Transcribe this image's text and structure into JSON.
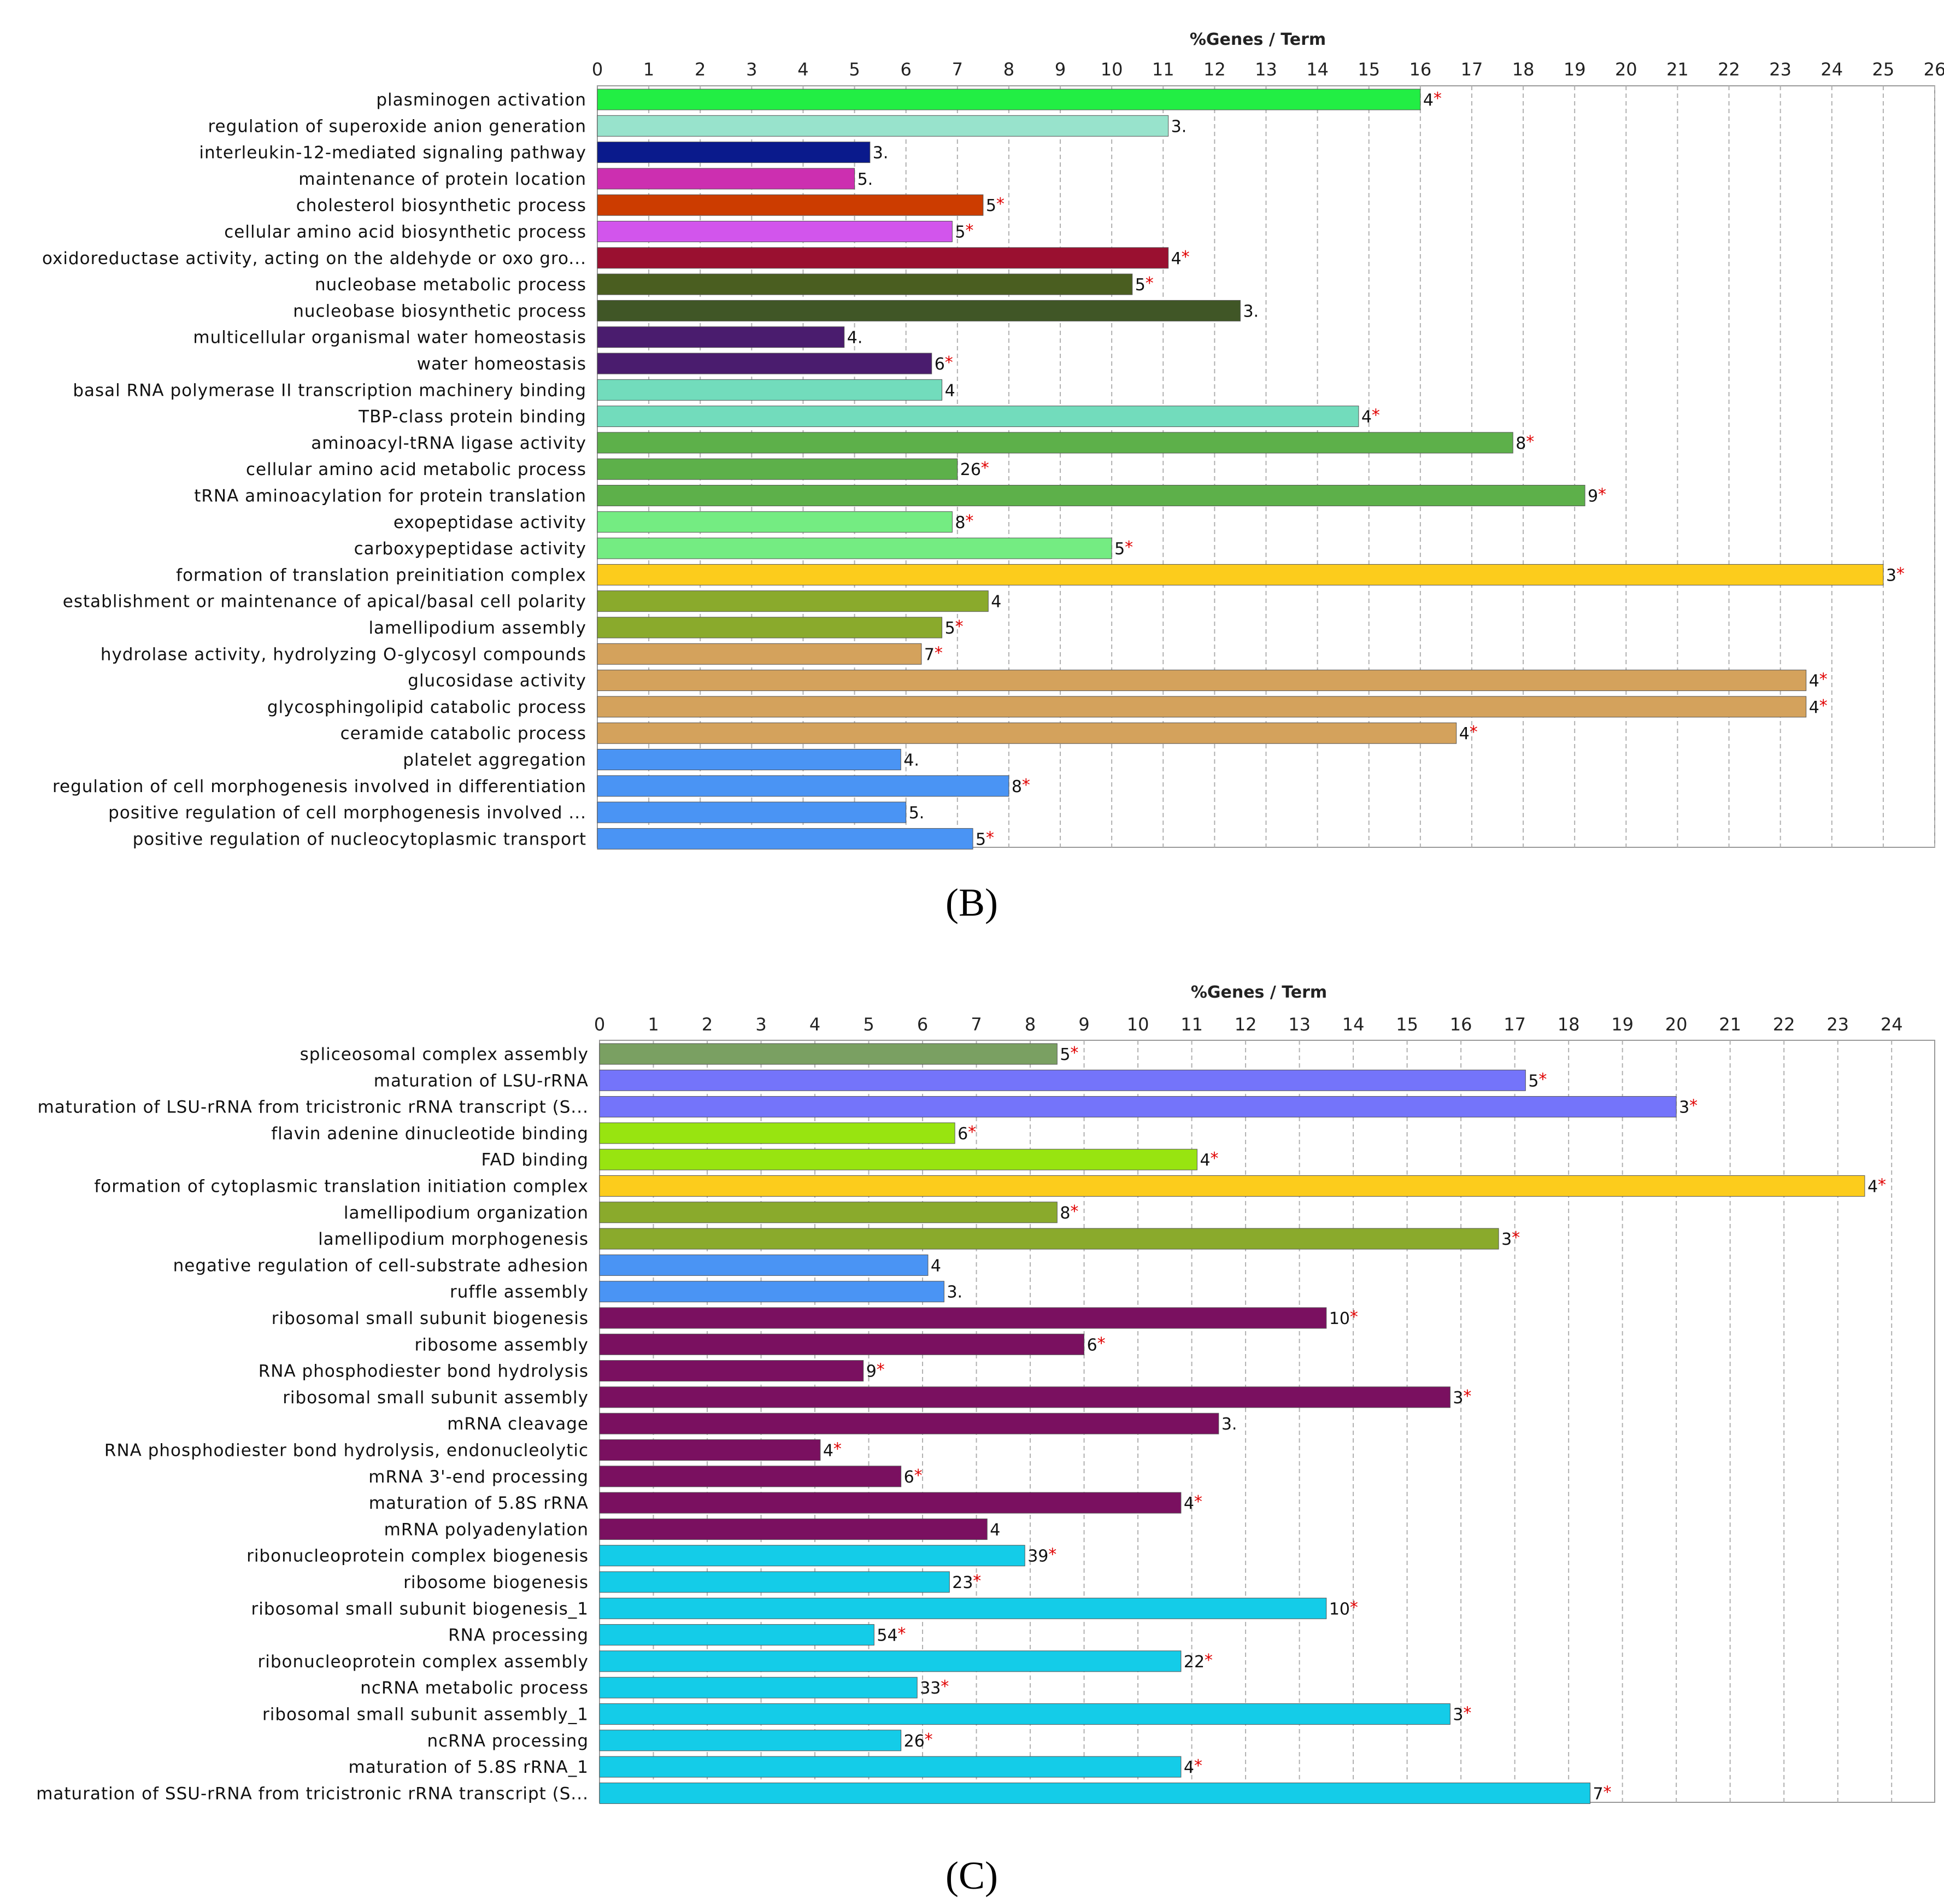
{
  "chart_data": [
    {
      "type": "bar",
      "orientation": "horizontal",
      "panel_label": "(B)",
      "axis_title": "%Genes / Term",
      "xlim": [
        0,
        26
      ],
      "ticks": [
        0,
        1,
        2,
        3,
        4,
        5,
        6,
        7,
        8,
        9,
        10,
        11,
        12,
        13,
        14,
        15,
        16,
        17,
        18,
        19,
        20,
        21,
        22,
        23,
        24,
        25,
        26
      ],
      "grid": true,
      "bars": [
        {
          "category": "plasminogen activation",
          "value": 16.0,
          "label": "4",
          "star": true,
          "color": "#22ee44"
        },
        {
          "category": "regulation of superoxide anion generation",
          "value": 11.1,
          "label": "3.",
          "star": false,
          "color": "#98e3cc"
        },
        {
          "category": "interleukin-12-mediated signaling pathway",
          "value": 5.3,
          "label": "3.",
          "star": false,
          "color": "#0a1a8c"
        },
        {
          "category": "maintenance of protein location",
          "value": 5.0,
          "label": "5.",
          "star": false,
          "color": "#cc2fb0"
        },
        {
          "category": "cholesterol biosynthetic process",
          "value": 7.5,
          "label": "5",
          "star": true,
          "color": "#cc3c00"
        },
        {
          "category": "cellular amino acid biosynthetic process",
          "value": 6.9,
          "label": "5",
          "star": true,
          "color": "#d255ec"
        },
        {
          "category": "oxidoreductase activity, acting on the aldehyde or oxo gro...",
          "value": 11.1,
          "label": "4",
          "star": true,
          "color": "#9a1030"
        },
        {
          "category": "nucleobase metabolic process",
          "value": 10.4,
          "label": "5",
          "star": true,
          "color": "#4a5e20"
        },
        {
          "category": "nucleobase biosynthetic process",
          "value": 12.5,
          "label": "3.",
          "star": false,
          "color": "#405626"
        },
        {
          "category": "multicellular organismal water homeostasis",
          "value": 4.8,
          "label": "4.",
          "star": false,
          "color": "#4a1c6e"
        },
        {
          "category": "water homeostasis",
          "value": 6.5,
          "label": "6",
          "star": true,
          "color": "#4a1c6e"
        },
        {
          "category": "basal RNA polymerase II transcription machinery binding",
          "value": 6.7,
          "label": "4",
          "star": false,
          "color": "#72dcbc"
        },
        {
          "category": "TBP-class protein binding",
          "value": 14.8,
          "label": "4",
          "star": true,
          "color": "#72dcbc"
        },
        {
          "category": "aminoacyl-tRNA ligase activity",
          "value": 17.8,
          "label": "8",
          "star": true,
          "color": "#5db04a"
        },
        {
          "category": "cellular amino acid metabolic process",
          "value": 7.0,
          "label": "26",
          "star": true,
          "color": "#5db04a"
        },
        {
          "category": "tRNA aminoacylation for protein translation",
          "value": 19.2,
          "label": "9",
          "star": true,
          "color": "#5db04a"
        },
        {
          "category": "exopeptidase activity",
          "value": 6.9,
          "label": "8",
          "star": true,
          "color": "#74ec82"
        },
        {
          "category": "carboxypeptidase activity",
          "value": 10.0,
          "label": "5",
          "star": true,
          "color": "#74ec82"
        },
        {
          "category": "formation of translation preinitiation complex",
          "value": 25.0,
          "label": "3",
          "star": true,
          "color": "#fccc1c"
        },
        {
          "category": "establishment or maintenance of apical/basal cell polarity",
          "value": 7.6,
          "label": "4",
          "star": false,
          "color": "#8aaa2c"
        },
        {
          "category": "lamellipodium assembly",
          "value": 6.7,
          "label": "5",
          "star": true,
          "color": "#8aaa2c"
        },
        {
          "category": "hydrolase activity, hydrolyzing O-glycosyl compounds",
          "value": 6.3,
          "label": "7",
          "star": true,
          "color": "#d4a25c"
        },
        {
          "category": "glucosidase activity",
          "value": 23.5,
          "label": "4",
          "star": true,
          "color": "#d4a25c"
        },
        {
          "category": "glycosphingolipid catabolic process",
          "value": 23.5,
          "label": "4",
          "star": true,
          "color": "#d4a25c"
        },
        {
          "category": "ceramide catabolic process",
          "value": 16.7,
          "label": "4",
          "star": true,
          "color": "#d4a25c"
        },
        {
          "category": "platelet aggregation",
          "value": 5.9,
          "label": "4.",
          "star": false,
          "color": "#4a94f4"
        },
        {
          "category": "regulation of cell morphogenesis involved in differentiation",
          "value": 8.0,
          "label": "8",
          "star": true,
          "color": "#4a94f4"
        },
        {
          "category": "positive regulation of cell morphogenesis involved ...",
          "value": 6.0,
          "label": "5.",
          "star": false,
          "color": "#4a94f4"
        },
        {
          "category": "positive regulation of nucleocytoplasmic transport",
          "value": 7.3,
          "label": "5",
          "star": true,
          "color": "#4a94f4"
        }
      ]
    },
    {
      "type": "bar",
      "orientation": "horizontal",
      "panel_label": "(C)",
      "axis_title": "%Genes / Term",
      "xlim": [
        0,
        24.8
      ],
      "ticks": [
        0,
        1,
        2,
        3,
        4,
        5,
        6,
        7,
        8,
        9,
        10,
        11,
        12,
        13,
        14,
        15,
        16,
        17,
        18,
        19,
        20,
        21,
        22,
        23,
        24
      ],
      "grid": true,
      "bars": [
        {
          "category": "spliceosomal complex assembly",
          "value": 8.5,
          "label": "5",
          "star": true,
          "color": "#7aa062"
        },
        {
          "category": "maturation of LSU-rRNA",
          "value": 17.2,
          "label": "5",
          "star": true,
          "color": "#7474fa"
        },
        {
          "category": "maturation of LSU-rRNA from tricistronic rRNA transcript (S...",
          "value": 20.0,
          "label": "3",
          "star": true,
          "color": "#7474fa"
        },
        {
          "category": "flavin adenine dinucleotide binding",
          "value": 6.6,
          "label": "6",
          "star": true,
          "color": "#98e410"
        },
        {
          "category": "FAD binding",
          "value": 11.1,
          "label": "4",
          "star": true,
          "color": "#98e410"
        },
        {
          "category": "formation of cytoplasmic translation initiation complex",
          "value": 23.5,
          "label": "4",
          "star": true,
          "color": "#fccc1c"
        },
        {
          "category": "lamellipodium organization",
          "value": 8.5,
          "label": "8",
          "star": true,
          "color": "#8aaa2c"
        },
        {
          "category": "lamellipodium morphogenesis",
          "value": 16.7,
          "label": "3",
          "star": true,
          "color": "#8aaa2c"
        },
        {
          "category": "negative regulation of cell-substrate adhesion",
          "value": 6.1,
          "label": "4",
          "star": false,
          "color": "#4a94f4"
        },
        {
          "category": "ruffle assembly",
          "value": 6.4,
          "label": "3.",
          "star": false,
          "color": "#4a94f4"
        },
        {
          "category": "ribosomal small subunit biogenesis",
          "value": 13.5,
          "label": "10",
          "star": true,
          "color": "#7a1060"
        },
        {
          "category": "ribosome assembly",
          "value": 9.0,
          "label": "6",
          "star": true,
          "color": "#7a1060"
        },
        {
          "category": "RNA phosphodiester bond hydrolysis",
          "value": 4.9,
          "label": "9",
          "star": true,
          "color": "#7a1060"
        },
        {
          "category": "ribosomal small subunit assembly",
          "value": 15.8,
          "label": "3",
          "star": true,
          "color": "#7a1060"
        },
        {
          "category": "mRNA cleavage",
          "value": 11.5,
          "label": "3.",
          "star": false,
          "color": "#7a1060"
        },
        {
          "category": "RNA phosphodiester bond hydrolysis, endonucleolytic",
          "value": 4.1,
          "label": "4",
          "star": true,
          "color": "#7a1060"
        },
        {
          "category": "mRNA 3'-end processing",
          "value": 5.6,
          "label": "6",
          "star": true,
          "color": "#7a1060"
        },
        {
          "category": "maturation of 5.8S rRNA",
          "value": 10.8,
          "label": "4",
          "star": true,
          "color": "#7a1060"
        },
        {
          "category": "mRNA polyadenylation",
          "value": 7.2,
          "label": "4",
          "star": false,
          "color": "#7a1060"
        },
        {
          "category": "ribonucleoprotein complex biogenesis",
          "value": 7.9,
          "label": "39",
          "star": true,
          "color": "#14cce8"
        },
        {
          "category": "ribosome biogenesis",
          "value": 6.5,
          "label": "23",
          "star": true,
          "color": "#14cce8"
        },
        {
          "category": "ribosomal small subunit biogenesis_1",
          "value": 13.5,
          "label": "10",
          "star": true,
          "color": "#14cce8"
        },
        {
          "category": "RNA processing",
          "value": 5.1,
          "label": "54",
          "star": true,
          "color": "#14cce8"
        },
        {
          "category": "ribonucleoprotein complex assembly",
          "value": 10.8,
          "label": "22",
          "star": true,
          "color": "#14cce8"
        },
        {
          "category": "ncRNA metabolic process",
          "value": 5.9,
          "label": "33",
          "star": true,
          "color": "#14cce8"
        },
        {
          "category": "ribosomal small subunit assembly_1",
          "value": 15.8,
          "label": "3",
          "star": true,
          "color": "#14cce8"
        },
        {
          "category": "ncRNA processing",
          "value": 5.6,
          "label": "26",
          "star": true,
          "color": "#14cce8"
        },
        {
          "category": "maturation of 5.8S rRNA_1",
          "value": 10.8,
          "label": "4",
          "star": true,
          "color": "#14cce8"
        },
        {
          "category": "maturation of SSU-rRNA from tricistronic rRNA transcript (S...",
          "value": 18.4,
          "label": "7",
          "star": true,
          "color": "#14cce8"
        }
      ]
    }
  ]
}
